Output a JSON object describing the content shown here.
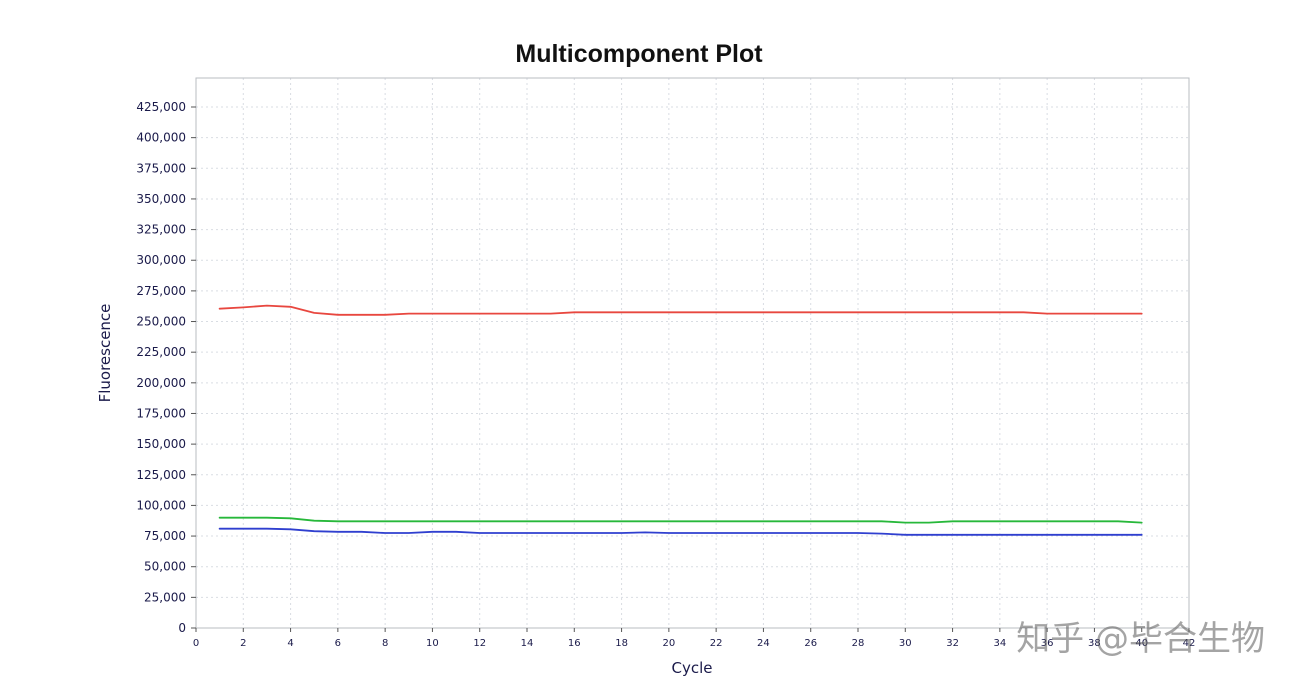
{
  "chart_data": {
    "type": "line",
    "title": "Multicomponent Plot",
    "xlabel": "Cycle",
    "ylabel": "Fluorescence",
    "xlim": [
      0,
      42
    ],
    "ylim": [
      0,
      425000
    ],
    "x_ticks": [
      0,
      2,
      4,
      6,
      8,
      10,
      12,
      14,
      16,
      18,
      20,
      22,
      24,
      26,
      28,
      30,
      32,
      34,
      36,
      38,
      40,
      42
    ],
    "y_ticks": [
      "0",
      "25,000",
      "50,000",
      "75,000",
      "100,000",
      "125,000",
      "150,000",
      "175,000",
      "200,000",
      "225,000",
      "250,000",
      "275,000",
      "300,000",
      "325,000",
      "350,000",
      "375,000",
      "400,000",
      "425,000"
    ],
    "grid": true,
    "x": [
      1,
      2,
      3,
      4,
      5,
      6,
      7,
      8,
      9,
      10,
      11,
      12,
      13,
      14,
      15,
      16,
      17,
      18,
      19,
      20,
      21,
      22,
      23,
      24,
      25,
      26,
      27,
      28,
      29,
      30,
      31,
      32,
      33,
      34,
      35,
      36,
      37,
      38,
      39,
      40
    ],
    "series": [
      {
        "color": "#e8473f",
        "values": [
          260500,
          261500,
          263000,
          262000,
          257000,
          255500,
          255500,
          255500,
          256500,
          256500,
          256500,
          256500,
          256500,
          256500,
          256500,
          257500,
          257500,
          257500,
          257500,
          257500,
          257500,
          257500,
          257500,
          257500,
          257500,
          257500,
          257500,
          257500,
          257500,
          257500,
          257500,
          257500,
          257500,
          257500,
          257500,
          256500,
          256500,
          256500,
          256500,
          256500
        ]
      },
      {
        "color": "#27b83a",
        "values": [
          90000,
          90000,
          90000,
          89500,
          87500,
          87000,
          87000,
          87000,
          87000,
          87000,
          87000,
          87000,
          87000,
          87000,
          87000,
          87000,
          87000,
          87000,
          87000,
          87000,
          87000,
          87000,
          87000,
          87000,
          87000,
          87000,
          87000,
          87000,
          87000,
          86000,
          86000,
          87000,
          87000,
          87000,
          87000,
          87000,
          87000,
          87000,
          87000,
          86000
        ]
      },
      {
        "color": "#2f3fcf",
        "values": [
          81000,
          81000,
          81000,
          80500,
          79000,
          78500,
          78500,
          77500,
          77500,
          78500,
          78500,
          77500,
          77500,
          77500,
          77500,
          77500,
          77500,
          77500,
          78000,
          77500,
          77500,
          77500,
          77500,
          77500,
          77500,
          77500,
          77500,
          77500,
          77000,
          76000,
          76000,
          76000,
          76000,
          76000,
          76000,
          76000,
          76000,
          76000,
          76000,
          76000
        ]
      }
    ]
  },
  "watermark": {
    "text": "知乎 @毕合生物"
  }
}
